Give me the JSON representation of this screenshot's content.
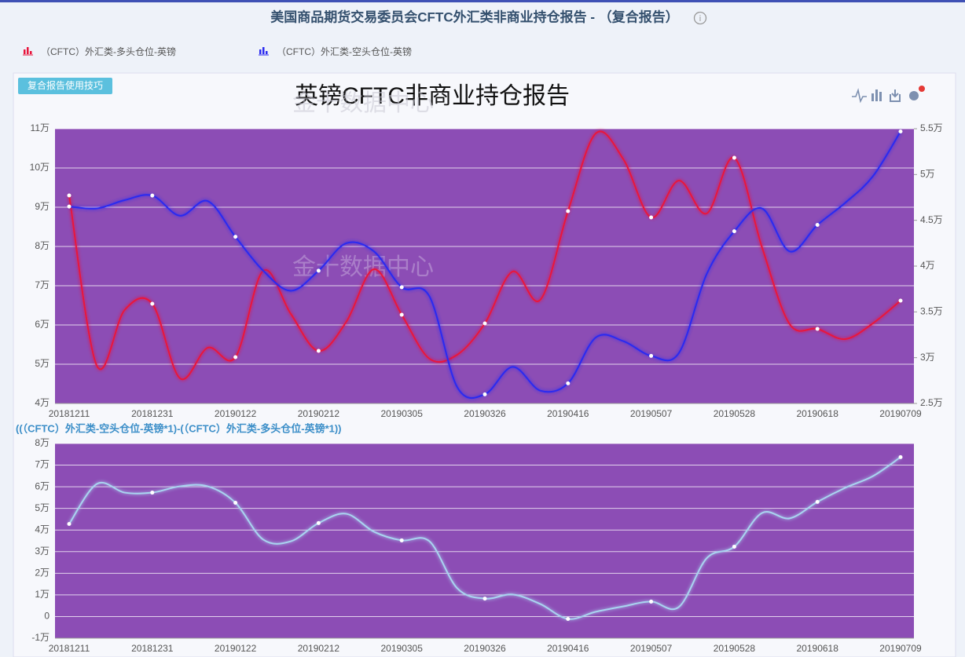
{
  "header": {
    "title": "美国商品期货交易委员会CFTC外汇类非商业持仓报告 - （复合报告）"
  },
  "button": "复合报告使用技巧",
  "watermark": "金十数据中心",
  "chart_data": [
    {
      "type": "line",
      "title": "英镑CFTC非商业持仓报告",
      "categories": [
        "20181211",
        null,
        null,
        "20181231",
        null,
        null,
        "20190122",
        null,
        null,
        "20190212",
        null,
        null,
        "20190305",
        null,
        null,
        "20190326",
        null,
        null,
        "20190416",
        null,
        null,
        "20190507",
        null,
        null,
        "20190528",
        null,
        null,
        "20190618",
        null,
        null,
        "20190709"
      ],
      "series": [
        {
          "name": "（CFTC）外汇类-多头仓位-英镑",
          "color": "#e8143c",
          "axis": "y",
          "values": [
            93000,
            49600,
            63800,
            65400,
            46400,
            54200,
            51800,
            73800,
            62800,
            53400,
            60800,
            74200,
            62600,
            51400,
            52400,
            60400,
            73600,
            66400,
            89000,
            108800,
            102200,
            87400,
            96800,
            88400,
            102600,
            79800,
            60200,
            59000,
            56400,
            60400,
            66200
          ]
        },
        {
          "name": "（CFTC）外汇类-空头仓位-英镑",
          "color": "#2a2af0",
          "axis": "y2",
          "values": [
            46500,
            46300,
            47200,
            47700,
            45500,
            47100,
            43200,
            39500,
            37300,
            39500,
            42500,
            41600,
            37700,
            36700,
            26800,
            26000,
            29000,
            26400,
            27200,
            32200,
            31800,
            30200,
            30500,
            39100,
            43800,
            46300,
            41600,
            44500,
            46900,
            49800,
            54700
          ]
        }
      ],
      "ylim": [
        40000,
        110000
      ],
      "yticks": [
        {
          "value": 40000,
          "label": "4万"
        },
        {
          "value": 50000,
          "label": "5万"
        },
        {
          "value": 60000,
          "label": "6万"
        },
        {
          "value": 70000,
          "label": "7万"
        },
        {
          "value": 80000,
          "label": "8万"
        },
        {
          "value": 90000,
          "label": "9万"
        },
        {
          "value": 100000,
          "label": "10万"
        },
        {
          "value": 110000,
          "label": "11万"
        }
      ],
      "y2lim": [
        25000,
        55000
      ],
      "y2ticks": [
        {
          "value": 25000,
          "label": "2.5万"
        },
        {
          "value": 30000,
          "label": "3万"
        },
        {
          "value": 35000,
          "label": "3.5万"
        },
        {
          "value": 40000,
          "label": "4万"
        },
        {
          "value": 45000,
          "label": "4.5万"
        },
        {
          "value": 50000,
          "label": "5万"
        },
        {
          "value": 55000,
          "label": "5.5万"
        }
      ],
      "grid": true
    },
    {
      "type": "line",
      "title": "((（CFTC）外汇类-空头仓位-英镑*1)-(（CFTC）外汇类-多头仓位-英镑*1))",
      "categories": [
        "20181211",
        null,
        null,
        "20181231",
        null,
        null,
        "20190122",
        null,
        null,
        "20190212",
        null,
        null,
        "20190305",
        null,
        null,
        "20190326",
        null,
        null,
        "20190416",
        null,
        null,
        "20190507",
        null,
        null,
        "20190528",
        null,
        null,
        "20190618",
        null,
        null,
        "20190709"
      ],
      "series": [
        {
          "color": "#a9d4f0",
          "axis": "y",
          "values": [
            42800,
            61300,
            57300,
            57300,
            60200,
            60200,
            52600,
            35600,
            34800,
            43200,
            47500,
            39200,
            35200,
            34800,
            13100,
            8300,
            10200,
            5800,
            -1100,
            2200,
            4700,
            6900,
            4400,
            26900,
            32300,
            47900,
            45400,
            53000,
            59500,
            64900,
            73700
          ]
        }
      ],
      "ylim": [
        -10000,
        80000
      ],
      "yticks": [
        {
          "value": -10000,
          "label": "-1万"
        },
        0,
        {
          "value": 10000,
          "label": "1万"
        },
        {
          "value": 20000,
          "label": "2万"
        },
        {
          "value": 30000,
          "label": "3万"
        },
        {
          "value": 40000,
          "label": "4万"
        },
        {
          "value": 50000,
          "label": "5万"
        },
        {
          "value": 60000,
          "label": "6万"
        },
        {
          "value": 70000,
          "label": "7万"
        },
        {
          "value": 80000,
          "label": "8万"
        }
      ],
      "grid": true
    }
  ]
}
